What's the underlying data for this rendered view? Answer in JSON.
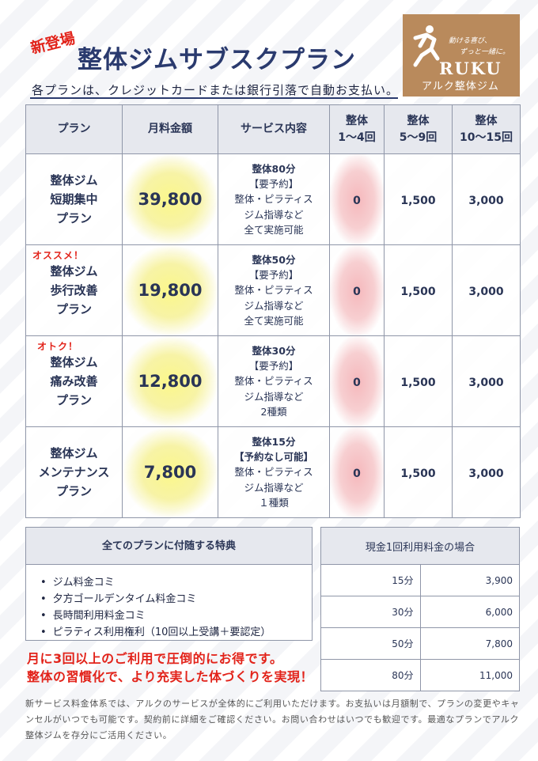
{
  "header": {
    "badge": "新登場",
    "title": "整体ジムサブスクプラン",
    "subtitle": "各プランは、クレジットカードまたは銀行引落で自動お支払い。"
  },
  "logo": {
    "tagline1": "動ける喜び、",
    "tagline2": "ずっと一緒に。",
    "word": "RUKU",
    "name": "アルク整体ジム",
    "color": "#b98a5c"
  },
  "plans_table": {
    "headers": [
      "プラン",
      "月料金額",
      "サービス内容",
      "整体\n1〜4回",
      "整体\n5〜9回",
      "整体\n10〜15回"
    ],
    "rows": [
      {
        "flag": "",
        "name": "整体ジム\n短期集中\nプラン",
        "price": "39,800",
        "service_title": "整体80分",
        "service_body": "【要予約】\n整体・ピラティス\nジム指導など\n全て実施可能",
        "tier1": "0",
        "tier2": "1,500",
        "tier3": "3,000"
      },
      {
        "flag": "オススメ！",
        "name": "整体ジム\n歩行改善\nプラン",
        "price": "19,800",
        "service_title": "整体50分",
        "service_body": "【要予約】\n整体・ピラティス\nジム指導など\n全て実施可能",
        "tier1": "0",
        "tier2": "1,500",
        "tier3": "3,000"
      },
      {
        "flag": "オトク！",
        "name": "整体ジム\n痛み改善\nプラン",
        "price": "12,800",
        "service_title": "整体30分",
        "service_body": "【要予約】\n整体・ピラティス\nジム指導など\n2種類",
        "tier1": "0",
        "tier2": "1,500",
        "tier3": "3,000"
      },
      {
        "flag": "",
        "name": "整体ジム\nメンテナンス\nプラン",
        "price": "7,800",
        "service_title": "整体15分\n【予約なし可能】",
        "service_body": "整体・ピラティス\nジム指導など\n１種類",
        "tier1": "0",
        "tier2": "1,500",
        "tier3": "3,000"
      }
    ]
  },
  "perks": {
    "title": "全てのプランに付随する特典",
    "items": [
      "ジム料金コミ",
      "夕方ゴールデンタイム料金コミ",
      "長時間利用料金コミ",
      "ピラティス利用権利（10回以上受講＋要認定）"
    ]
  },
  "promo": {
    "line1": "月に3回以上のご利用で圧倒的にお得です。",
    "line2": "整体の習慣化で、より充実した体づくりを実現！"
  },
  "cash_table": {
    "title": "現金1回利用料金の場合",
    "rows": [
      {
        "duration": "15分",
        "price": "3,900"
      },
      {
        "duration": "30分",
        "price": "6,000"
      },
      {
        "duration": "50分",
        "price": "7,800"
      },
      {
        "duration": "80分",
        "price": "11,000"
      }
    ]
  },
  "footer": {
    "text": "新サービス料金体系では、アルクのサービスが全体的にご利用いただけます。お支払いは月額制で、プランの変更やキャンセルがいつでも可能です。契約前に詳細をご確認ください。お問い合わせはいつでも歓迎です。最適なプランでアルク整体ジムを存分にご活用ください。"
  },
  "colors": {
    "navy": "#2a3a6e",
    "accent_red": "#e2231a",
    "price_highlight": "#fbf78a",
    "zero_highlight": "#f5b8bc"
  }
}
